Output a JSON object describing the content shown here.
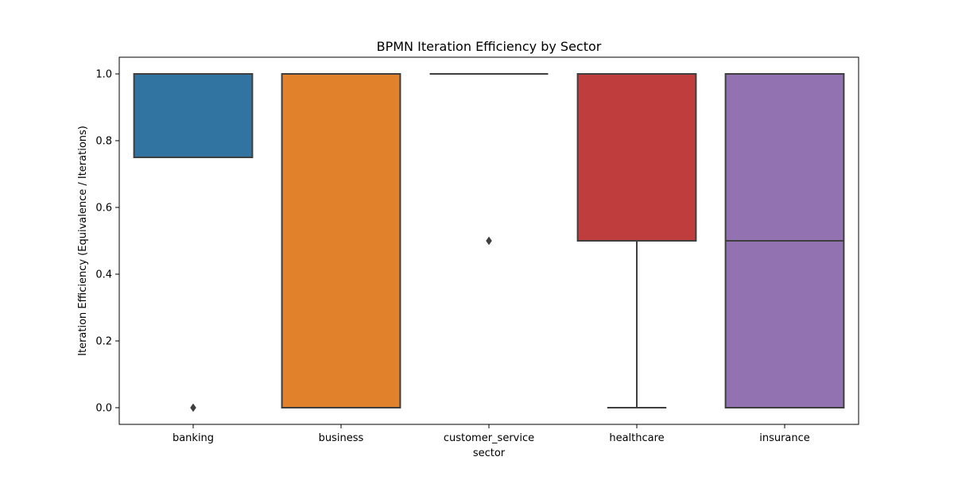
{
  "chart_data": {
    "type": "box",
    "title": "BPMN Iteration Efficiency by Sector",
    "xlabel": "sector",
    "ylabel": "Iteration Efficiency (Equivalence / Iterations)",
    "ylim": [
      -0.05,
      1.05
    ],
    "yticks": [
      0.0,
      0.2,
      0.4,
      0.6,
      0.8,
      1.0
    ],
    "ytick_labels": [
      "0.0",
      "0.2",
      "0.4",
      "0.6",
      "0.8",
      "1.0"
    ],
    "grid": false,
    "categories": [
      "banking",
      "business",
      "customer_service",
      "healthcare",
      "insurance"
    ],
    "boxes": [
      {
        "category": "banking",
        "q1": 0.75,
        "median": 1.0,
        "q3": 1.0,
        "whisker_low": 0.75,
        "whisker_high": 1.0,
        "outliers": [
          0.0
        ],
        "color": "#3274a1"
      },
      {
        "category": "business",
        "q1": 0.0,
        "median": 1.0,
        "q3": 1.0,
        "whisker_low": 0.0,
        "whisker_high": 1.0,
        "outliers": [],
        "color": "#e1812c"
      },
      {
        "category": "customer_service",
        "q1": 1.0,
        "median": 1.0,
        "q3": 1.0,
        "whisker_low": 1.0,
        "whisker_high": 1.0,
        "outliers": [
          0.5
        ],
        "color": "#3a923a"
      },
      {
        "category": "healthcare",
        "q1": 0.5,
        "median": 1.0,
        "q3": 1.0,
        "whisker_low": 0.0,
        "whisker_high": 1.0,
        "outliers": [],
        "color": "#c03d3e"
      },
      {
        "category": "insurance",
        "q1": 0.0,
        "median": 0.5,
        "q3": 1.0,
        "whisker_low": 0.0,
        "whisker_high": 1.0,
        "outliers": [],
        "color": "#9372b2"
      }
    ],
    "line_color": "#3f3f3f"
  }
}
